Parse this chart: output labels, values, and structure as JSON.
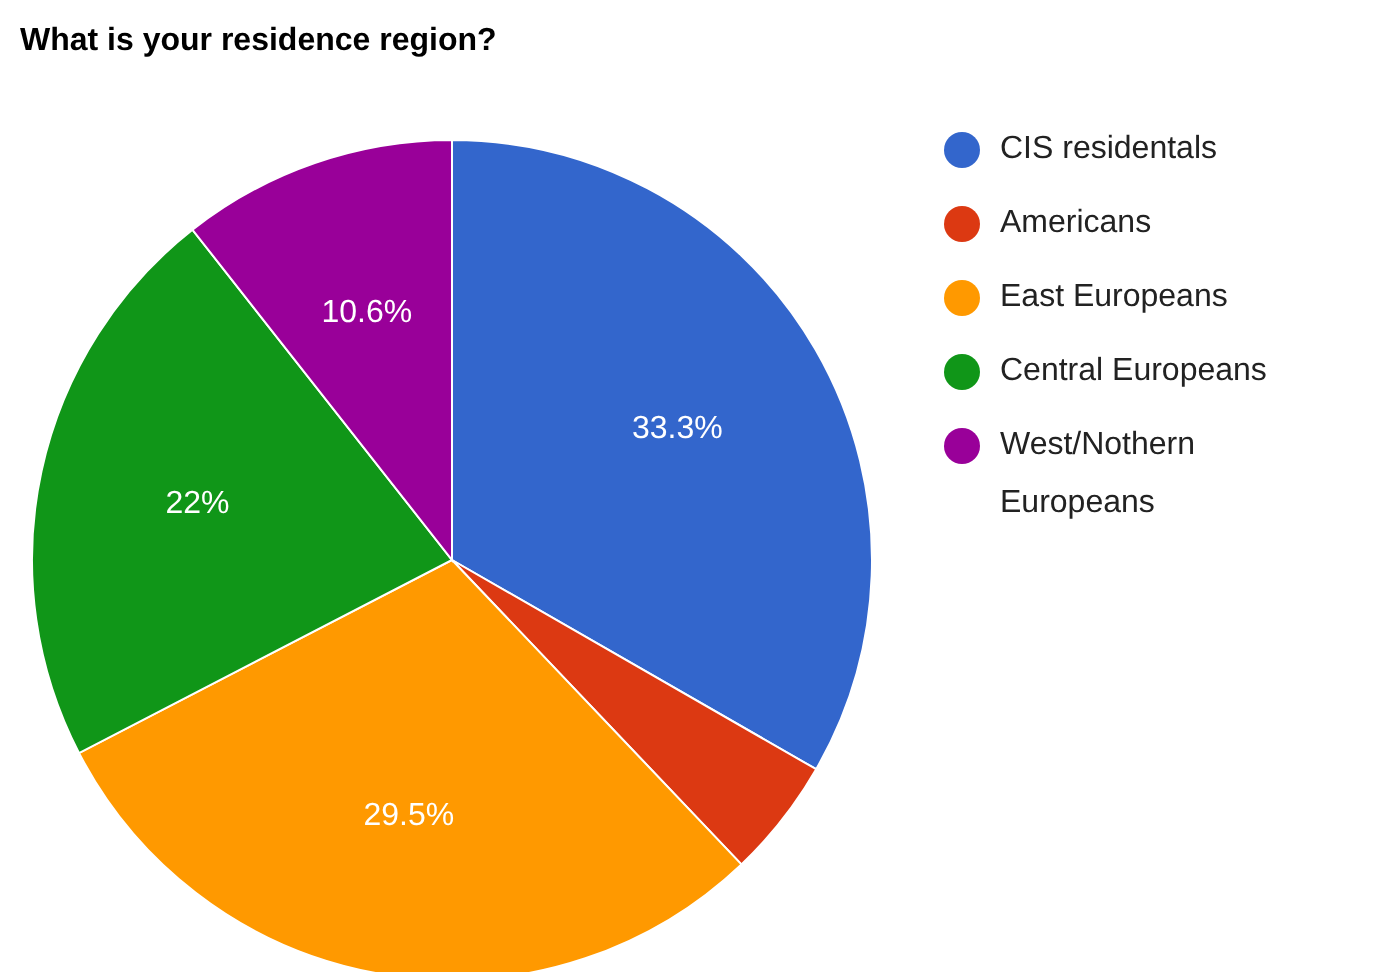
{
  "chart_data": {
    "type": "pie",
    "title": "What is your residence region?",
    "categories": [
      "CIS residentals",
      "Americans",
      "East Europeans",
      "Central Europeans",
      "West/Nothern Europeans"
    ],
    "values": [
      33.3,
      4.6,
      29.5,
      22,
      10.6
    ],
    "value_labels": [
      "33.3%",
      null,
      "29.5%",
      "22%",
      "10.6%"
    ],
    "colors": [
      "#3366cc",
      "#dc3912",
      "#ff9900",
      "#109618",
      "#990099"
    ],
    "legend": "right"
  }
}
